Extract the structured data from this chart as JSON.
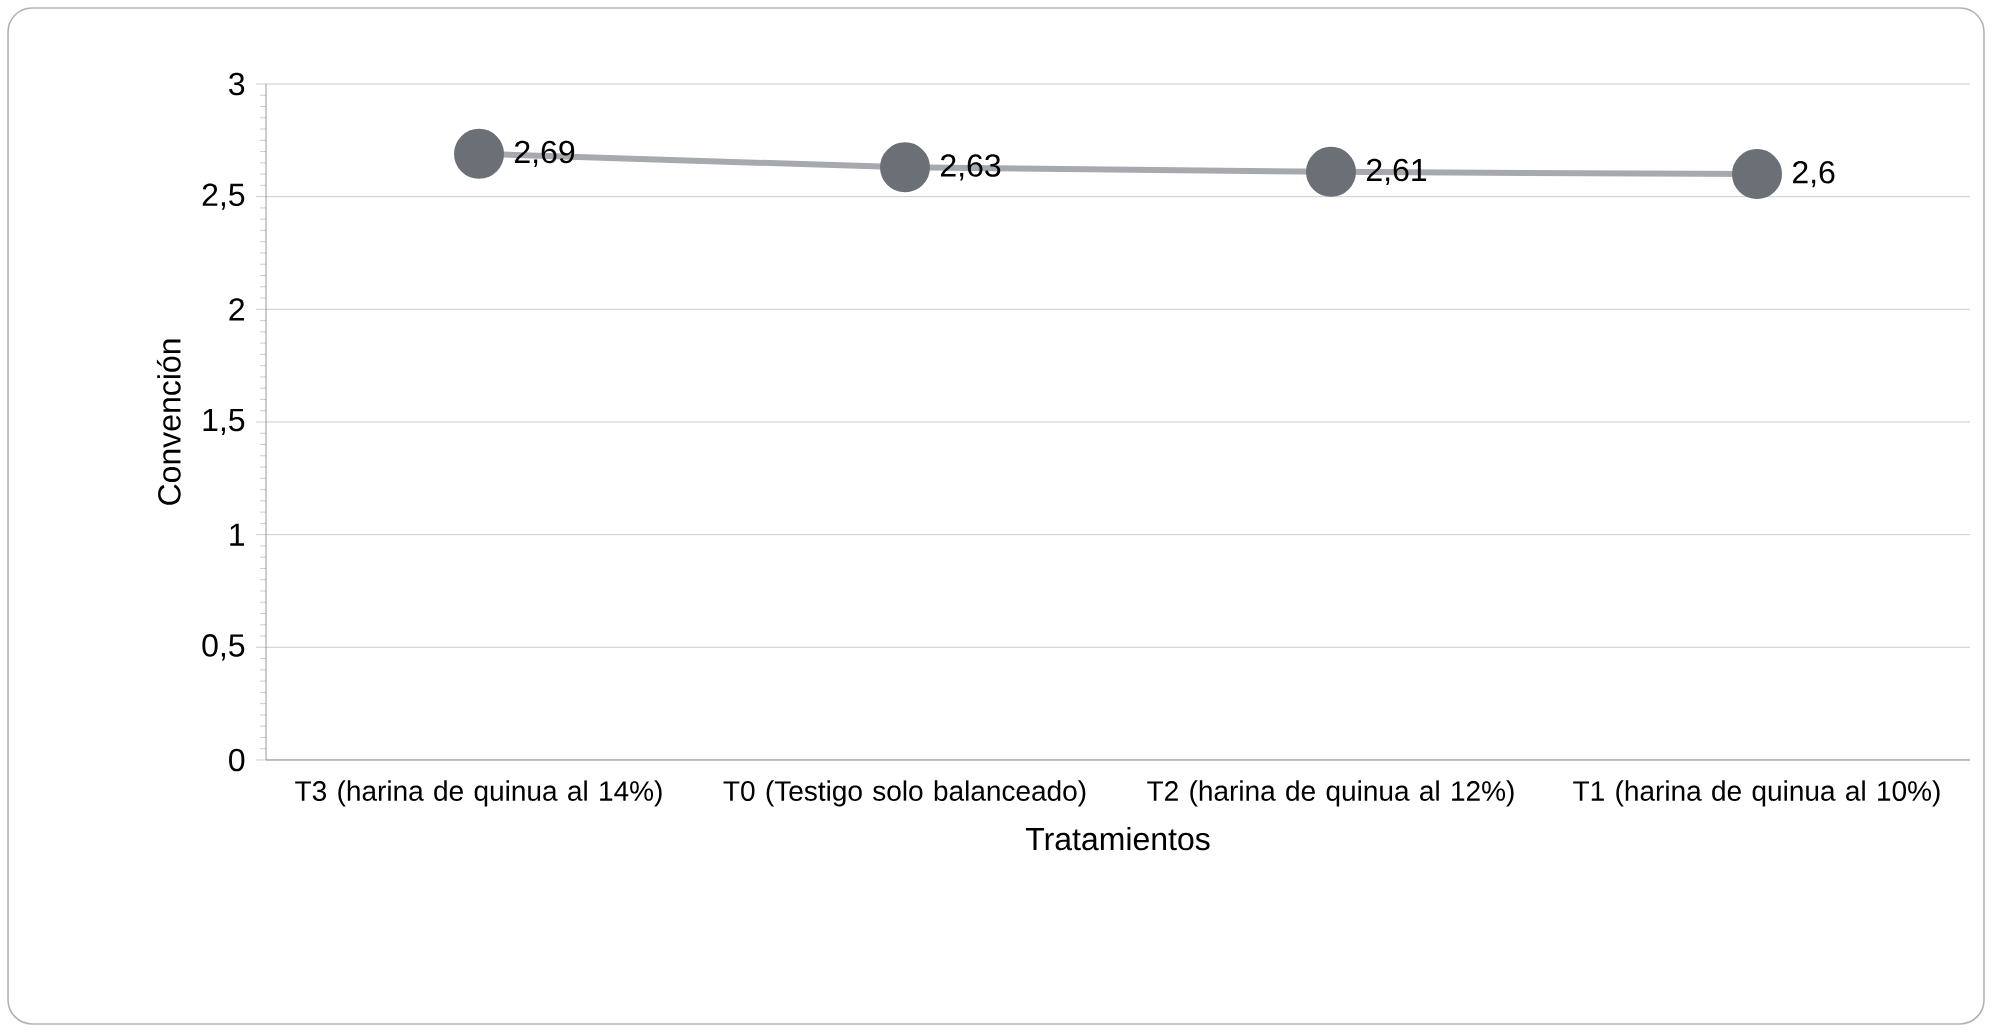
{
  "chart_data": {
    "type": "line",
    "xlabel": "Tratamientos",
    "ylabel": "Convención",
    "categories": [
      "T3 (harina de quinua al 14%)",
      "T0 (Testigo solo balanceado)",
      "T2 (harina de quinua al 12%)",
      "T1 (harina de quinua al 10%)"
    ],
    "series": [
      {
        "color": "#6b7077",
        "values": [
          2.69,
          2.63,
          2.61,
          2.6
        ],
        "value_labels": [
          "2,69",
          "2,63",
          "2,61",
          "2,6"
        ]
      }
    ],
    "ylim": [
      0,
      3
    ],
    "yticks": [
      0,
      {
        "value": 0.5,
        "label": "0,5"
      },
      1,
      {
        "value": 1.5,
        "label": "1,5"
      },
      2,
      {
        "value": 2.5,
        "label": "2,5"
      },
      3
    ],
    "grid": "y",
    "marker": "circle",
    "line_style": "solid"
  }
}
